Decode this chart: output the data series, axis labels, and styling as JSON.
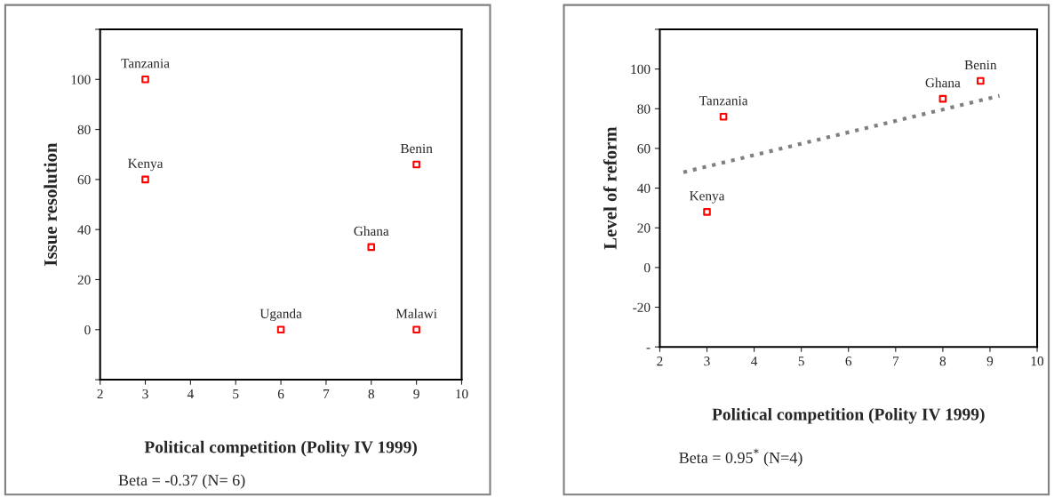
{
  "chart_data": [
    {
      "type": "scatter",
      "xlabel": "Political competition (Polity IV 1999)",
      "ylabel": "Issue resolution",
      "xlim": [
        2,
        10
      ],
      "xticks": [
        2,
        3,
        4,
        5,
        6,
        7,
        8,
        9,
        10
      ],
      "ylim": [
        -20,
        120
      ],
      "yticks": [
        {
          "value": -20,
          "label": null
        },
        0,
        20,
        40,
        60,
        80,
        100,
        {
          "value": 120,
          "label": null
        }
      ],
      "grid": false,
      "legend": false,
      "series": [
        {
          "marker": "square",
          "color": "#ff0000",
          "x": [
            3,
            3,
            9,
            8,
            6,
            9
          ],
          "values": [
            100,
            60,
            66,
            33,
            0,
            0
          ]
        }
      ],
      "annotations": [
        {
          "text": "Tanzania",
          "x": 3,
          "y": 100
        },
        {
          "text": "Kenya",
          "x": 3,
          "y": 60
        },
        {
          "text": "Benin",
          "x": 9,
          "y": 66
        },
        {
          "text": "Ghana",
          "x": 8,
          "y": 33
        },
        {
          "text": "Uganda",
          "x": 6,
          "y": 0
        },
        {
          "text": "Malawi",
          "x": 9,
          "y": 0
        },
        "Beta = -0.37 (N= 6)"
      ]
    },
    {
      "type": "scatter",
      "xlabel": "Political competition (Polity IV 1999)",
      "ylabel": "Level of reform",
      "xlim": [
        2,
        10
      ],
      "xticks": [
        2,
        3,
        4,
        5,
        6,
        7,
        8,
        9,
        10
      ],
      "ylim": [
        -40,
        120
      ],
      "yticks": [
        {
          "value": -40,
          "label": "-"
        },
        -20,
        0,
        20,
        40,
        60,
        80,
        100,
        {
          "value": 120,
          "label": null
        }
      ],
      "grid": false,
      "legend": false,
      "series": [
        {
          "marker": "square",
          "color": "#ff0000",
          "x": [
            3.35,
            3,
            8,
            8.8
          ],
          "values": [
            76,
            28,
            85,
            94
          ]
        },
        {
          "type": "line",
          "color": "#808080",
          "line_style": "dotted",
          "x": [
            2.5,
            9.2
          ],
          "values": [
            48,
            86.5
          ]
        }
      ],
      "annotations": [
        {
          "text": "Tanzania",
          "x": 3.35,
          "y": 76
        },
        {
          "text": "Kenya",
          "x": 3,
          "y": 28
        },
        {
          "text": "Ghana",
          "x": 8,
          "y": 85
        },
        {
          "text": "Benin",
          "x": 8.8,
          "y": 94
        },
        "Beta = 0.95$^{*}$ (N=4)"
      ]
    }
  ]
}
